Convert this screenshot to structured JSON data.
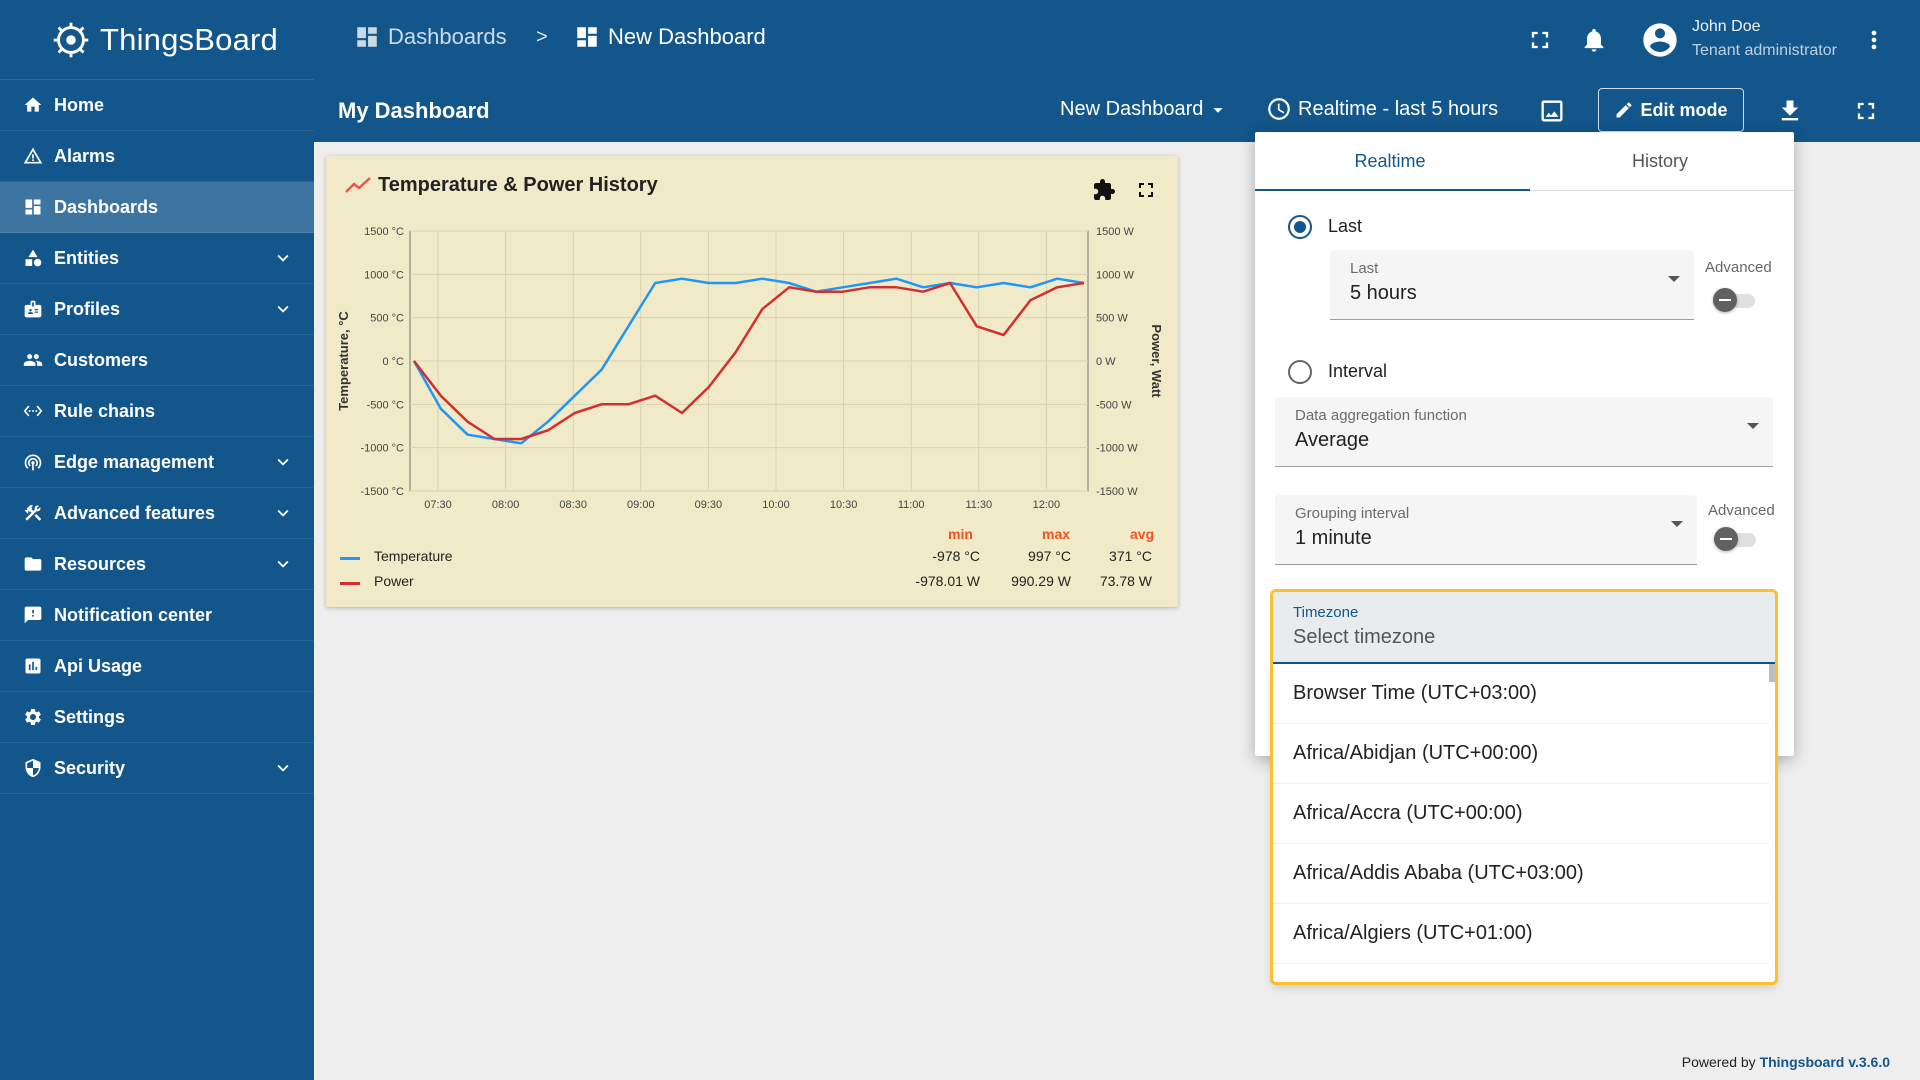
{
  "app": {
    "name": "ThingsBoard",
    "brand_color": "#13568b"
  },
  "sidebar": {
    "items": [
      {
        "label": "Home",
        "icon": "home-icon",
        "expandable": false
      },
      {
        "label": "Alarms",
        "icon": "warning-icon",
        "expandable": false
      },
      {
        "label": "Dashboards",
        "icon": "dashboard-icon",
        "expandable": false,
        "active": true
      },
      {
        "label": "Entities",
        "icon": "entities-icon",
        "expandable": true
      },
      {
        "label": "Profiles",
        "icon": "badge-icon",
        "expandable": true
      },
      {
        "label": "Customers",
        "icon": "group-icon",
        "expandable": false
      },
      {
        "label": "Rule chains",
        "icon": "settings-ethernet-icon",
        "expandable": false
      },
      {
        "label": "Edge management",
        "icon": "router-icon",
        "expandable": true
      },
      {
        "label": "Advanced features",
        "icon": "construction-icon",
        "expandable": true
      },
      {
        "label": "Resources",
        "icon": "folder-icon",
        "expandable": true
      },
      {
        "label": "Notification center",
        "icon": "feedback-icon",
        "expandable": false
      },
      {
        "label": "Api Usage",
        "icon": "insert-chart-icon",
        "expandable": false
      },
      {
        "label": "Settings",
        "icon": "gear-icon",
        "expandable": false
      },
      {
        "label": "Security",
        "icon": "shield-icon",
        "expandable": true
      }
    ]
  },
  "topbar": {
    "breadcrumb": [
      {
        "label": "Dashboards"
      },
      {
        "label": "New Dashboard"
      }
    ],
    "separator": ">",
    "user": {
      "name": "John Doe",
      "role": "Tenant administrator"
    }
  },
  "dashboard_toolbar": {
    "title": "My Dashboard",
    "state": "New Dashboard",
    "timewindow": "Realtime - last 5 hours",
    "edit_label": "Edit mode"
  },
  "widget": {
    "title": "Temperature & Power History",
    "legend": {
      "headers": [
        "min",
        "max",
        "avg"
      ],
      "rows": [
        {
          "name": "Temperature",
          "color": "#2196f3",
          "min": "-978 °C",
          "max": "997 °C",
          "avg": "371 °C"
        },
        {
          "name": "Power",
          "color": "#d32f2f",
          "min": "-978.01 W",
          "max": "990.29 W",
          "avg": "73.78 W"
        }
      ]
    }
  },
  "chart_data": {
    "type": "line",
    "ylabel": "Temperature, °C",
    "y2label": "Power, Watt",
    "ylim": [
      -1500,
      1500
    ],
    "y2lim": [
      -1500,
      1500
    ],
    "yticks": [
      "1500 °C",
      "1000 °C",
      "500 °C",
      "0 °C",
      "-500 °C",
      "-1000 °C",
      "-1500 °C"
    ],
    "y2ticks": [
      "1500 W",
      "1000 W",
      "500 W",
      "0 W",
      "-500 W",
      "-1000 W",
      "-1500 W"
    ],
    "xticks": [
      "07:30",
      "08:00",
      "08:30",
      "09:00",
      "09:30",
      "10:00",
      "10:30",
      "11:00",
      "11:30",
      "12:00"
    ],
    "x": [
      "07:18",
      "07:30",
      "07:42",
      "07:54",
      "08:06",
      "08:18",
      "08:30",
      "08:42",
      "08:54",
      "09:06",
      "09:18",
      "09:30",
      "09:42",
      "09:54",
      "10:06",
      "10:18",
      "10:30",
      "10:42",
      "10:54",
      "11:06",
      "11:18",
      "11:30",
      "11:42",
      "11:54",
      "12:06",
      "12:18"
    ],
    "series": [
      {
        "name": "Temperature",
        "color": "#2196f3",
        "values": [
          0,
          -550,
          -850,
          -900,
          -950,
          -700,
          -400,
          -100,
          400,
          900,
          950,
          900,
          900,
          950,
          900,
          800,
          850,
          900,
          950,
          850,
          900,
          850,
          900,
          850,
          950,
          900
        ]
      },
      {
        "name": "Power",
        "color": "#d32f2f",
        "values": [
          0,
          -400,
          -700,
          -900,
          -900,
          -800,
          -600,
          -500,
          -500,
          -400,
          -600,
          -300,
          100,
          600,
          850,
          800,
          800,
          850,
          850,
          800,
          900,
          400,
          300,
          700,
          850,
          900
        ]
      }
    ]
  },
  "timewindow_panel": {
    "tabs": [
      "Realtime",
      "History"
    ],
    "active_tab": "Realtime",
    "last": {
      "radio_label": "Last",
      "field_label": "Last",
      "value": "5 hours",
      "advanced_label": "Advanced"
    },
    "interval": {
      "radio_label": "Interval"
    },
    "aggregation": {
      "label": "Data aggregation function",
      "value": "Average"
    },
    "grouping": {
      "label": "Grouping interval",
      "value": "1 minute",
      "advanced_label": "Advanced"
    },
    "timezone": {
      "label": "Timezone",
      "placeholder": "Select timezone"
    },
    "timezone_options": [
      "Browser Time (UTC+03:00)",
      "Africa/Abidjan (UTC+00:00)",
      "Africa/Accra (UTC+00:00)",
      "Africa/Addis Ababa (UTC+03:00)",
      "Africa/Algiers (UTC+01:00)"
    ]
  },
  "footer": {
    "prefix": "Powered by",
    "link": "Thingsboard v.3.6.0"
  }
}
